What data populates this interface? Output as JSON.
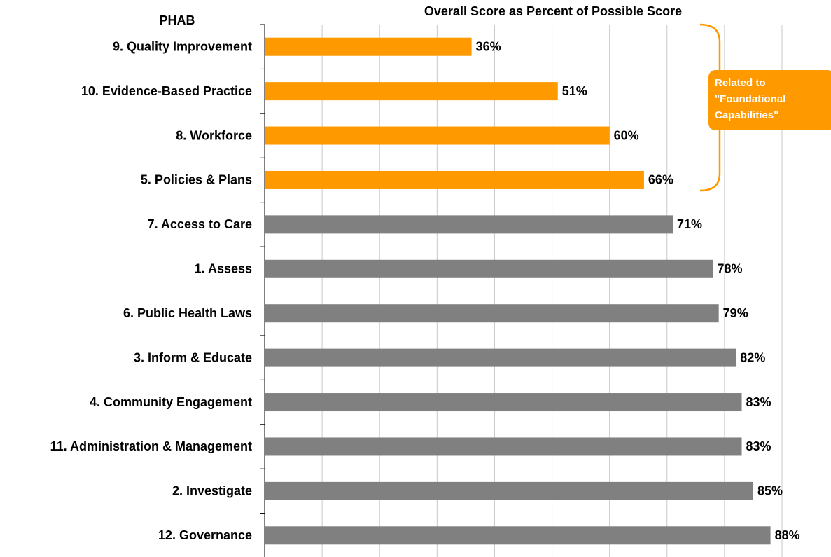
{
  "chart_data": {
    "type": "hbar",
    "title": "Overall Score as Percent of Possible Score",
    "y_label": "PHAB",
    "categories": [
      "9. Quality Improvement",
      "10. Evidence-Based Practice",
      "8. Workforce",
      "5. Policies & Plans",
      "7. Access to Care",
      "1. Assess",
      "6. Public Health Laws",
      "3. Inform & Educate",
      "4. Community Engagement",
      "11. Administration & Management",
      "2. Investigate",
      "12. Governance"
    ],
    "values": [
      36,
      51,
      60,
      66,
      71,
      78,
      79,
      82,
      83,
      83,
      85,
      88
    ],
    "value_labels": [
      "36%",
      "51%",
      "60%",
      "66%",
      "71%",
      "78%",
      "79%",
      "82%",
      "83%",
      "83%",
      "85%",
      "88%"
    ],
    "colors": [
      "#FF9900",
      "#FF9900",
      "#FF9900",
      "#FF9900",
      "#808080",
      "#808080",
      "#808080",
      "#808080",
      "#808080",
      "#808080",
      "#808080",
      "#808080"
    ],
    "xlim": [
      0,
      90
    ],
    "xticks": [
      0,
      10,
      20,
      30,
      40,
      50,
      60,
      70,
      80,
      90
    ],
    "grid": true,
    "annotation": {
      "lines": [
        "Related to",
        "\"Foundational",
        "Capabilities\""
      ],
      "color": "#FF9900"
    }
  }
}
